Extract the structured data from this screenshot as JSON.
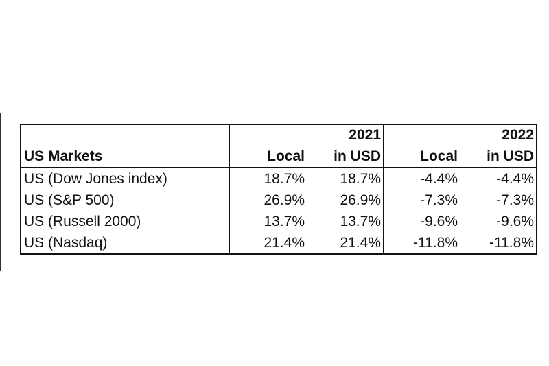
{
  "table": {
    "title": "US Markets",
    "years": [
      "2021",
      "2022"
    ],
    "subheaders": [
      "Local",
      "in USD",
      "Local",
      "in USD"
    ],
    "rows": [
      {
        "name": "US (Dow Jones index)",
        "values": [
          "18.7%",
          "18.7%",
          "-4.4%",
          "-4.4%"
        ]
      },
      {
        "name": "US (S&P 500)",
        "values": [
          "26.9%",
          "26.9%",
          "-7.3%",
          "-7.3%"
        ]
      },
      {
        "name": "US (Russell 2000)",
        "values": [
          "13.7%",
          "13.7%",
          "-9.6%",
          "-9.6%"
        ]
      },
      {
        "name": "US (Nasdaq)",
        "values": [
          "21.4%",
          "21.4%",
          "-11.8%",
          "-11.8%"
        ]
      }
    ]
  }
}
